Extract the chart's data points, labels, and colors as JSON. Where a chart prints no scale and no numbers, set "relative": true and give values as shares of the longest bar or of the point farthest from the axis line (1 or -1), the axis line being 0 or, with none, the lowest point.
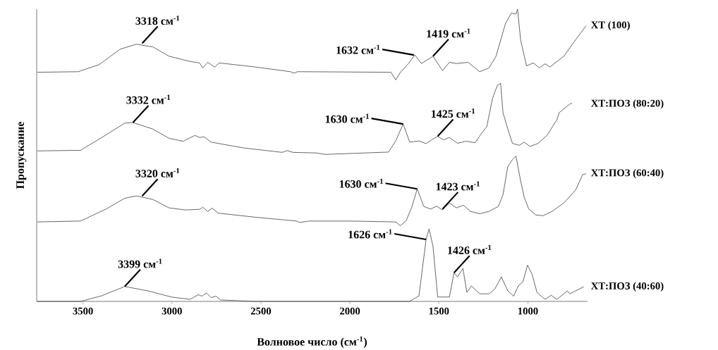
{
  "chart_data": {
    "type": "line",
    "relative": true,
    "xlabel": "Волновое число (см$^{-1}$)",
    "ylabel": "Пропускание",
    "xlim": [
      3760,
      665
    ],
    "xticks": [
      3500,
      3000,
      2500,
      2000,
      1500,
      1000
    ],
    "legend": false,
    "grid": false,
    "marker": "none",
    "line_style": "solid",
    "series": [
      {
        "name": "ХТ (100)",
        "color": "#404040",
        "x": [
          3757,
          3528,
          3409,
          3291,
          3200,
          3108,
          3016,
          2898,
          2845,
          2826,
          2799,
          2760,
          2734,
          2530,
          2334,
          2314,
          2294,
          2268,
          1769,
          1743,
          1717,
          1671,
          1635,
          1598,
          1533,
          1480,
          1441,
          1402,
          1336,
          1271,
          1218,
          1179,
          1126,
          1093,
          1067,
          1058,
          1041,
          1008,
          969,
          936,
          903,
          877,
          798,
          732,
          673
        ],
        "values": [
          0.784,
          0.786,
          0.81,
          0.863,
          0.88,
          0.871,
          0.839,
          0.821,
          0.816,
          0.799,
          0.818,
          0.802,
          0.816,
          0.802,
          0.786,
          0.781,
          0.786,
          0.786,
          0.784,
          0.758,
          0.783,
          0.814,
          0.843,
          0.814,
          0.839,
          0.79,
          0.818,
          0.814,
          0.818,
          0.786,
          0.799,
          0.839,
          0.951,
          0.987,
          0.983,
          1.0,
          0.895,
          0.806,
          0.816,
          0.799,
          0.813,
          0.802,
          0.839,
          0.895,
          0.943
        ]
      },
      {
        "name": "ХТ:ПОЗ (80:20)",
        "color": "#404040",
        "x": [
          3757,
          3514,
          3383,
          3265,
          3219,
          3108,
          3016,
          2937,
          2871,
          2845,
          2819,
          2780,
          2596,
          2380,
          2353,
          2320,
          2189,
          2137,
          1783,
          1743,
          1701,
          1664,
          1612,
          1572,
          1533,
          1507,
          1474,
          1441,
          1395,
          1349,
          1297,
          1257,
          1231,
          1199,
          1172,
          1153,
          1140,
          1113,
          1087,
          1048,
          1021,
          988,
          942,
          890,
          837,
          824,
          758,
          752
        ],
        "values": [
          0.515,
          0.517,
          0.565,
          0.61,
          0.612,
          0.59,
          0.558,
          0.548,
          0.568,
          0.561,
          0.563,
          0.545,
          0.525,
          0.51,
          0.516,
          0.51,
          0.508,
          0.503,
          0.511,
          0.549,
          0.607,
          0.545,
          0.549,
          0.54,
          0.556,
          0.565,
          0.553,
          0.561,
          0.541,
          0.548,
          0.543,
          0.578,
          0.598,
          0.694,
          0.739,
          0.746,
          0.646,
          0.59,
          0.541,
          0.534,
          0.545,
          0.53,
          0.541,
          0.57,
          0.622,
          0.646,
          0.678,
          0.675
        ]
      },
      {
        "name": "ХТ:ПОЗ (60:40)",
        "color": "#404040",
        "x": [
          3757,
          3514,
          3370,
          3265,
          3200,
          3108,
          3016,
          2924,
          2845,
          2826,
          2799,
          2773,
          2740,
          2530,
          2301,
          2281,
          2229,
          2006,
          1743,
          1717,
          1684,
          1651,
          1622,
          1585,
          1546,
          1513,
          1480,
          1441,
          1402,
          1362,
          1323,
          1271,
          1218,
          1166,
          1140,
          1113,
          1087,
          1067,
          1041,
          1021,
          995,
          956,
          916,
          864,
          798,
          732,
          693,
          673
        ],
        "values": [
          0.272,
          0.275,
          0.316,
          0.353,
          0.361,
          0.349,
          0.32,
          0.313,
          0.315,
          0.322,
          0.308,
          0.319,
          0.302,
          0.288,
          0.275,
          0.27,
          0.275,
          0.275,
          0.272,
          0.259,
          0.276,
          0.325,
          0.385,
          0.325,
          0.316,
          0.326,
          0.313,
          0.337,
          0.32,
          0.329,
          0.308,
          0.3,
          0.308,
          0.325,
          0.365,
          0.461,
          0.485,
          0.497,
          0.413,
          0.357,
          0.316,
          0.296,
          0.293,
          0.308,
          0.337,
          0.381,
          0.433,
          0.437
        ]
      },
      {
        "name": "ХТ:ПОЗ (40:60)",
        "color": "#404040",
        "x": [
          3757,
          3514,
          3396,
          3265,
          3134,
          3003,
          2898,
          2852,
          2832,
          2806,
          2780,
          2753,
          2727,
          2530,
          2268,
          1664,
          1612,
          1572,
          1555,
          1533,
          1507,
          1441,
          1415,
          1395,
          1365,
          1343,
          1317,
          1271,
          1218,
          1185,
          1149,
          1113,
          1080,
          1054,
          1028,
          1002,
          976,
          949,
          903,
          870,
          837,
          778,
          765,
          686
        ],
        "values": [
          0.0,
          0.0,
          0.019,
          0.051,
          0.036,
          0.015,
          0.007,
          0.023,
          0.018,
          0.029,
          0.013,
          0.018,
          0.005,
          0.0,
          0.0,
          0.0,
          0.019,
          0.212,
          0.248,
          0.188,
          0.015,
          0.015,
          0.098,
          0.084,
          0.113,
          0.031,
          0.053,
          0.026,
          0.026,
          0.043,
          0.084,
          0.036,
          0.018,
          0.053,
          0.067,
          0.124,
          0.092,
          0.031,
          0.007,
          0.021,
          0.007,
          0.036,
          0.026,
          0.05
        ]
      }
    ],
    "annotations": [
      {
        "text": "3318 см$^{-1}$",
        "x": 3167,
        "y": 0.883
      },
      {
        "text": "1632 см$^{-1}$",
        "x": 1640,
        "y": 0.843
      },
      {
        "text": "1419 см$^{-1}$",
        "x": 1533,
        "y": 0.839
      },
      {
        "text": "3332 см$^{-1}$",
        "x": 3219,
        "y": 0.612
      },
      {
        "text": "1630 см$^{-1}$",
        "x": 1701,
        "y": 0.607
      },
      {
        "text": "1425 см$^{-1}$",
        "x": 1507,
        "y": 0.565
      },
      {
        "text": "3320 см$^{-1}$",
        "x": 3167,
        "y": 0.361
      },
      {
        "text": "1630 см$^{-1}$",
        "x": 1622,
        "y": 0.385
      },
      {
        "text": "1423 см$^{-1}$",
        "x": 1480,
        "y": 0.316
      },
      {
        "text": "3399 см$^{-1}$",
        "x": 3265,
        "y": 0.051
      },
      {
        "text": "1626 см$^{-1}$",
        "x": 1572,
        "y": 0.212
      },
      {
        "text": "1426 см$^{-1}$",
        "x": 1415,
        "y": 0.098
      }
    ]
  }
}
